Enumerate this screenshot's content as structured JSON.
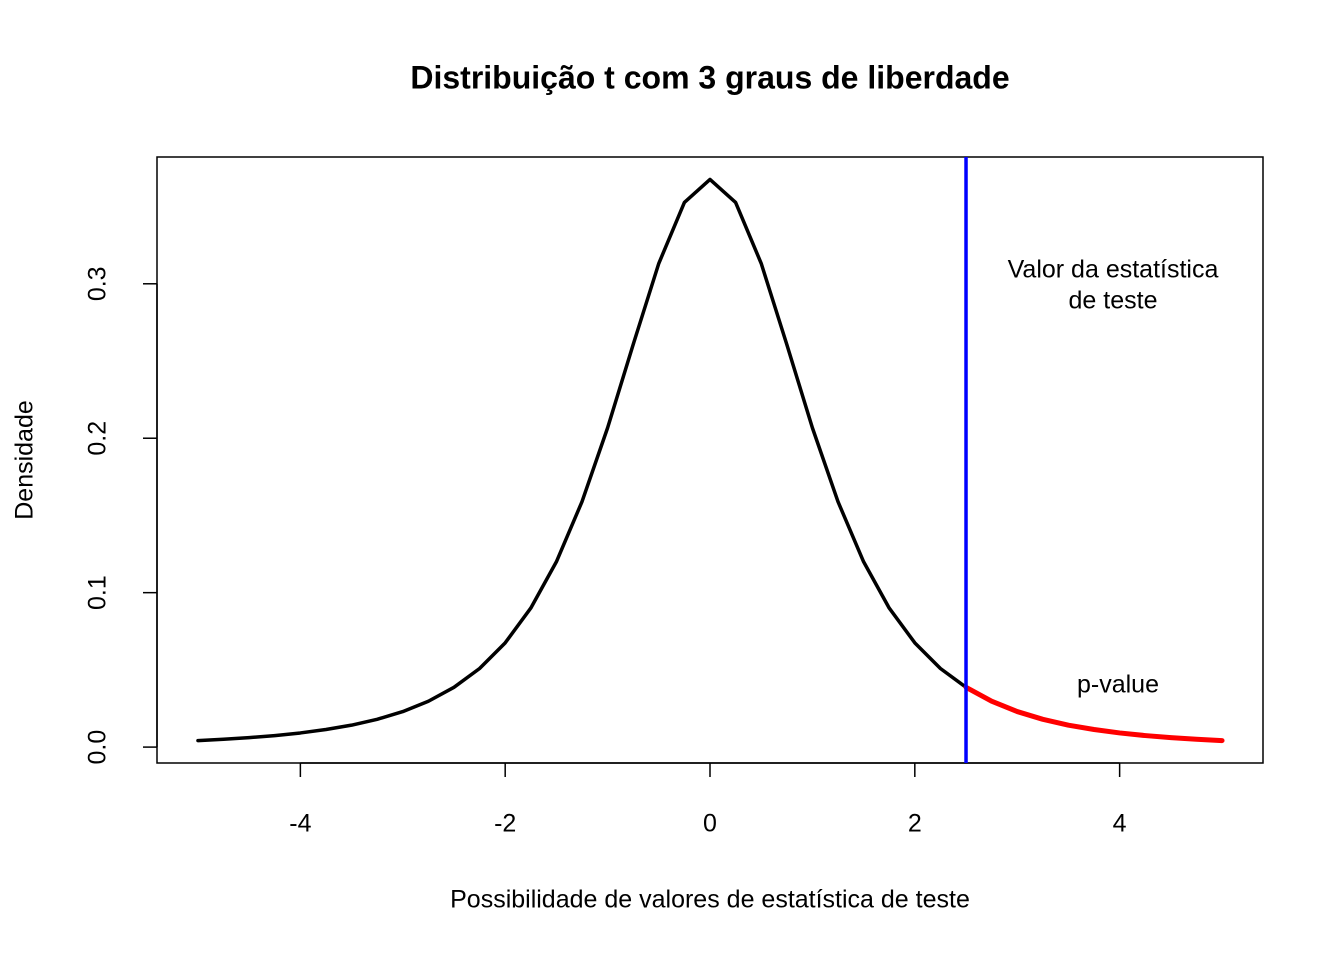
{
  "chart_data": {
    "type": "line",
    "title": "Distribuição t com 3 graus de liberdade",
    "x_label": "Possibilidade de valores de estatística de teste",
    "y_label": "Densidade",
    "x": [
      -5,
      -4.75,
      -4.5,
      -4.25,
      -4,
      -3.75,
      -3.5,
      -3.25,
      -3,
      -2.75,
      -2.5,
      -2.25,
      -2,
      -1.75,
      -1.5,
      -1.25,
      -1,
      -0.75,
      -0.5,
      -0.25,
      0,
      0.25,
      0.5,
      0.75,
      1,
      1.25,
      1.5,
      1.75,
      2,
      2.25,
      2.5,
      2.75,
      3,
      3.25,
      3.5,
      3.75,
      4,
      4.25,
      4.5,
      4.75,
      5
    ],
    "series": [
      {
        "color": "#000000",
        "values": [
          0.00422,
          0.00506,
          0.00612,
          0.00746,
          0.00916,
          0.0114,
          0.0142,
          0.018,
          0.023,
          0.0297,
          0.0387,
          0.0509,
          0.0675,
          0.09,
          0.12,
          0.1589,
          0.2067,
          0.2607,
          0.3132,
          0.3527,
          0.3676,
          0.3527,
          0.3132,
          0.2607,
          0.2067,
          0.1589,
          0.12,
          0.09,
          0.0675,
          0.0509,
          0.0387,
          null,
          null,
          null,
          null,
          null,
          null,
          null,
          null,
          null,
          null
        ]
      },
      {
        "color": "#ff0000",
        "values": [
          null,
          null,
          null,
          null,
          null,
          null,
          null,
          null,
          null,
          null,
          null,
          null,
          null,
          null,
          null,
          null,
          null,
          null,
          null,
          null,
          null,
          null,
          null,
          null,
          null,
          null,
          null,
          null,
          null,
          null,
          0.0387,
          0.0297,
          0.023,
          0.018,
          0.0142,
          0.0114,
          0.00916,
          0.00746,
          0.00612,
          0.00506,
          0.00422
        ]
      }
    ],
    "vline": 2.5,
    "vline_color": "#0000ff",
    "annotations": [
      {
        "lines": [
          "Valor da estatística",
          "de teste"
        ]
      },
      {
        "lines": [
          "p-value"
        ]
      }
    ],
    "xlim": [
      -5.4,
      5.4
    ],
    "ylim": [
      -0.0103,
      0.3821
    ],
    "xticks": [
      -4,
      -2,
      0,
      2,
      4
    ],
    "yticks": [
      {
        "value": 0,
        "label": "0.0"
      },
      0.1,
      0.2,
      0.3
    ],
    "grid": false
  }
}
